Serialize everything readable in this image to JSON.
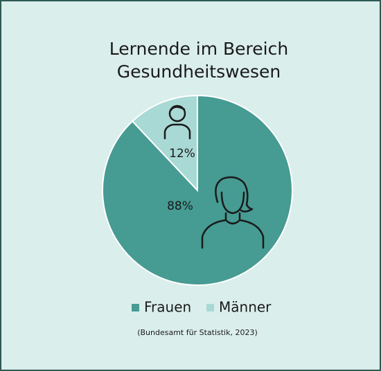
{
  "chart_data": {
    "type": "pie",
    "title": "Lernende im Bereich Gesundheitswesen",
    "categories": [
      "Frauen",
      "Männer"
    ],
    "values": [
      88,
      12
    ],
    "value_labels": [
      "88%",
      "12%"
    ],
    "colors": [
      "#469b93",
      "#a9d9d4"
    ],
    "legend": "bottom",
    "source": "(Bundesamt für Statistik, 2023)"
  }
}
